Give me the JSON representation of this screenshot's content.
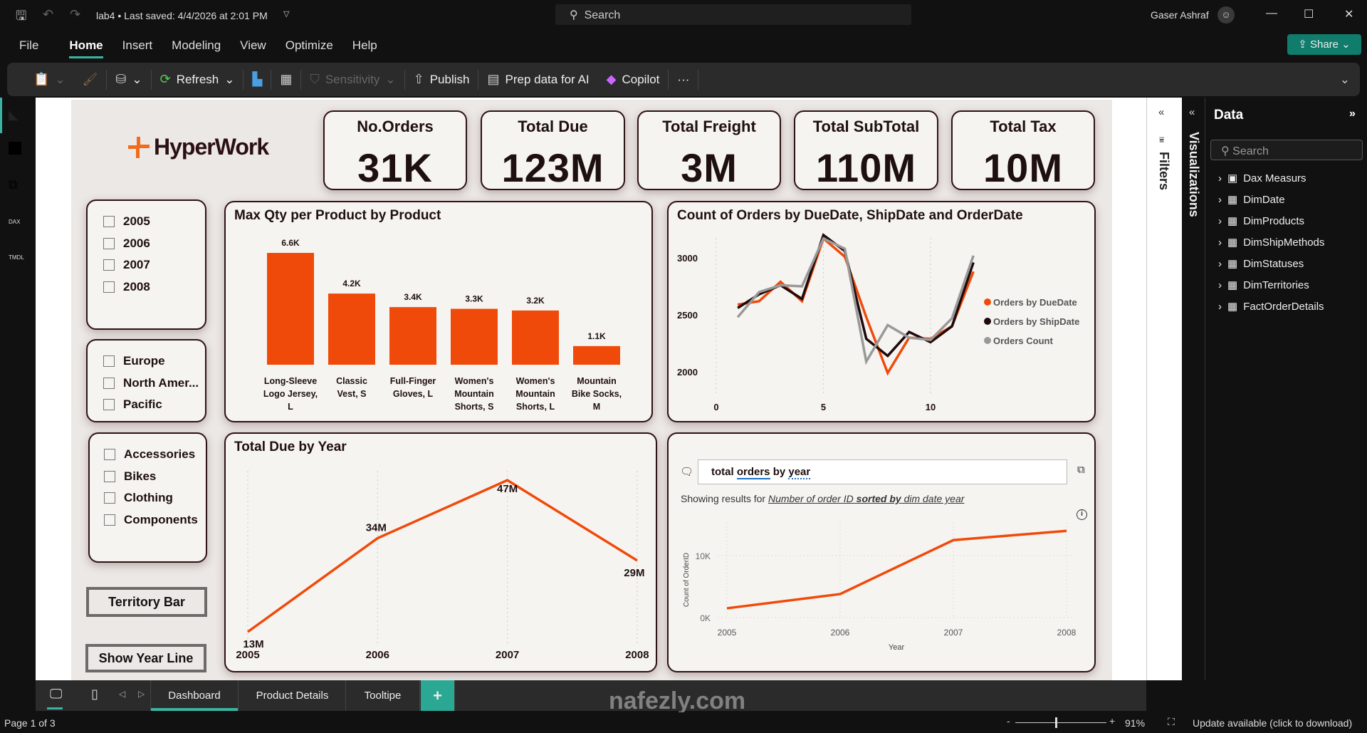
{
  "titlebar": {
    "doc_title": "lab4 • Last saved: 4/4/2026 at 2:01 PM",
    "search": "Search",
    "user": "Gaser Ashraf"
  },
  "menu": {
    "items": [
      "File",
      "Home",
      "Insert",
      "Modeling",
      "View",
      "Optimize",
      "Help"
    ],
    "active": "Home",
    "share": "Share"
  },
  "ribbon": {
    "refresh": "Refresh",
    "sensitivity": "Sensitivity",
    "publish": "Publish",
    "prep": "Prep data for AI",
    "copilot": "Copilot",
    "more": "···"
  },
  "rail": {
    "dax": "DAX",
    "tmdl": "TMDL"
  },
  "logo": {
    "text": "HyperWork"
  },
  "kpis": [
    {
      "title": "No.Orders",
      "value": "31K"
    },
    {
      "title": "Total Due",
      "value": "123M"
    },
    {
      "title": "Total Freight",
      "value": "3M"
    },
    {
      "title": "Total SubTotal",
      "value": "110M"
    },
    {
      "title": "Total Tax",
      "value": "10M"
    }
  ],
  "slicers": {
    "years": [
      "2005",
      "2006",
      "2007",
      "2008"
    ],
    "regions": [
      "Europe",
      "North Amer...",
      "Pacific"
    ],
    "categories": [
      "Accessories",
      "Bikes",
      "Clothing",
      "Components"
    ]
  },
  "buttons": {
    "territory": "Territory Bar",
    "year_line": "Show Year Line"
  },
  "chart_data": [
    {
      "type": "bar",
      "title": "Max Qty per Product by Product",
      "categories": [
        "Long-Sleeve Logo Jersey, L",
        "Classic Vest, S",
        "Full-Finger Gloves, L",
        "Women's Mountain Shorts, S",
        "Women's Mountain Shorts, L",
        "Mountain Bike Socks, M"
      ],
      "values": [
        6600,
        4200,
        3400,
        3300,
        3200,
        1100
      ],
      "data_labels": [
        "6.6K",
        "4.2K",
        "3.4K",
        "3.3K",
        "3.2K",
        "1.1K"
      ],
      "color": "#f04a0a"
    },
    {
      "type": "line",
      "title": "Count of Orders by DueDate, ShipDate and OrderDate",
      "x": [
        1,
        2,
        3,
        4,
        5,
        6,
        7,
        8,
        9,
        10,
        11,
        12
      ],
      "xticks": [
        "0",
        "5",
        "10"
      ],
      "yticks": [
        "2000",
        "2500",
        "3000"
      ],
      "legend": "right",
      "series": [
        {
          "name": "Orders by DueDate",
          "color": "#f04a0a",
          "values": [
            2590,
            2620,
            2790,
            2620,
            3170,
            3010,
            2480,
            1990,
            2300,
            2290,
            2400,
            2880
          ]
        },
        {
          "name": "Orders by ShipDate",
          "color": "#1e0a0c",
          "values": [
            2560,
            2680,
            2760,
            2640,
            3200,
            3060,
            2290,
            2140,
            2350,
            2260,
            2400,
            2960
          ]
        },
        {
          "name": "Orders Count",
          "color": "#999999",
          "values": [
            2480,
            2700,
            2760,
            2750,
            3170,
            3080,
            2090,
            2410,
            2300,
            2280,
            2470,
            3020
          ]
        }
      ]
    },
    {
      "type": "line",
      "title": "Total Due by Year",
      "categories": [
        "2005",
        "2006",
        "2007",
        "2008"
      ],
      "values": [
        13,
        34,
        47,
        29
      ],
      "data_labels": [
        "13M",
        "34M",
        "47M",
        "29M"
      ],
      "color": "#f04a0a"
    },
    {
      "type": "line",
      "title": "",
      "categories": [
        "2005",
        "2006",
        "2007",
        "2008"
      ],
      "values": [
        1500,
        3800,
        12500,
        14000
      ],
      "yticks": [
        "0K",
        "10K"
      ],
      "xlabel": "Year",
      "ylabel": "Count of OrderID",
      "color": "#f04a0a"
    }
  ],
  "qa": {
    "query_parts": [
      "total ",
      "orders",
      " by ",
      "year"
    ],
    "showing_prefix": "Showing results for ",
    "showing_a": "Number of order ID ",
    "showing_b": "sorted by",
    "showing_c": " dim date year"
  },
  "panes": {
    "filters": "Filters",
    "visualizations": "Visualizations",
    "data": "Data",
    "data_search": "Search",
    "tables": [
      "Dax Measurs",
      "DimDate",
      "DimProducts",
      "DimShipMethods",
      "DimStatuses",
      "DimTerritories",
      "FactOrderDetails"
    ]
  },
  "pages": {
    "tabs": [
      "Dashboard",
      "Product Details",
      "Tooltipe"
    ],
    "active": "Dashboard",
    "add": "+"
  },
  "status": {
    "page": "Page 1 of 3",
    "zoom": "91%",
    "update": "Update available (click to download)"
  },
  "watermark": "nafezly.com",
  "colors": {
    "accent": "#f04a0a",
    "teal": "#3ab3a0",
    "dark": "#1e0f10"
  }
}
